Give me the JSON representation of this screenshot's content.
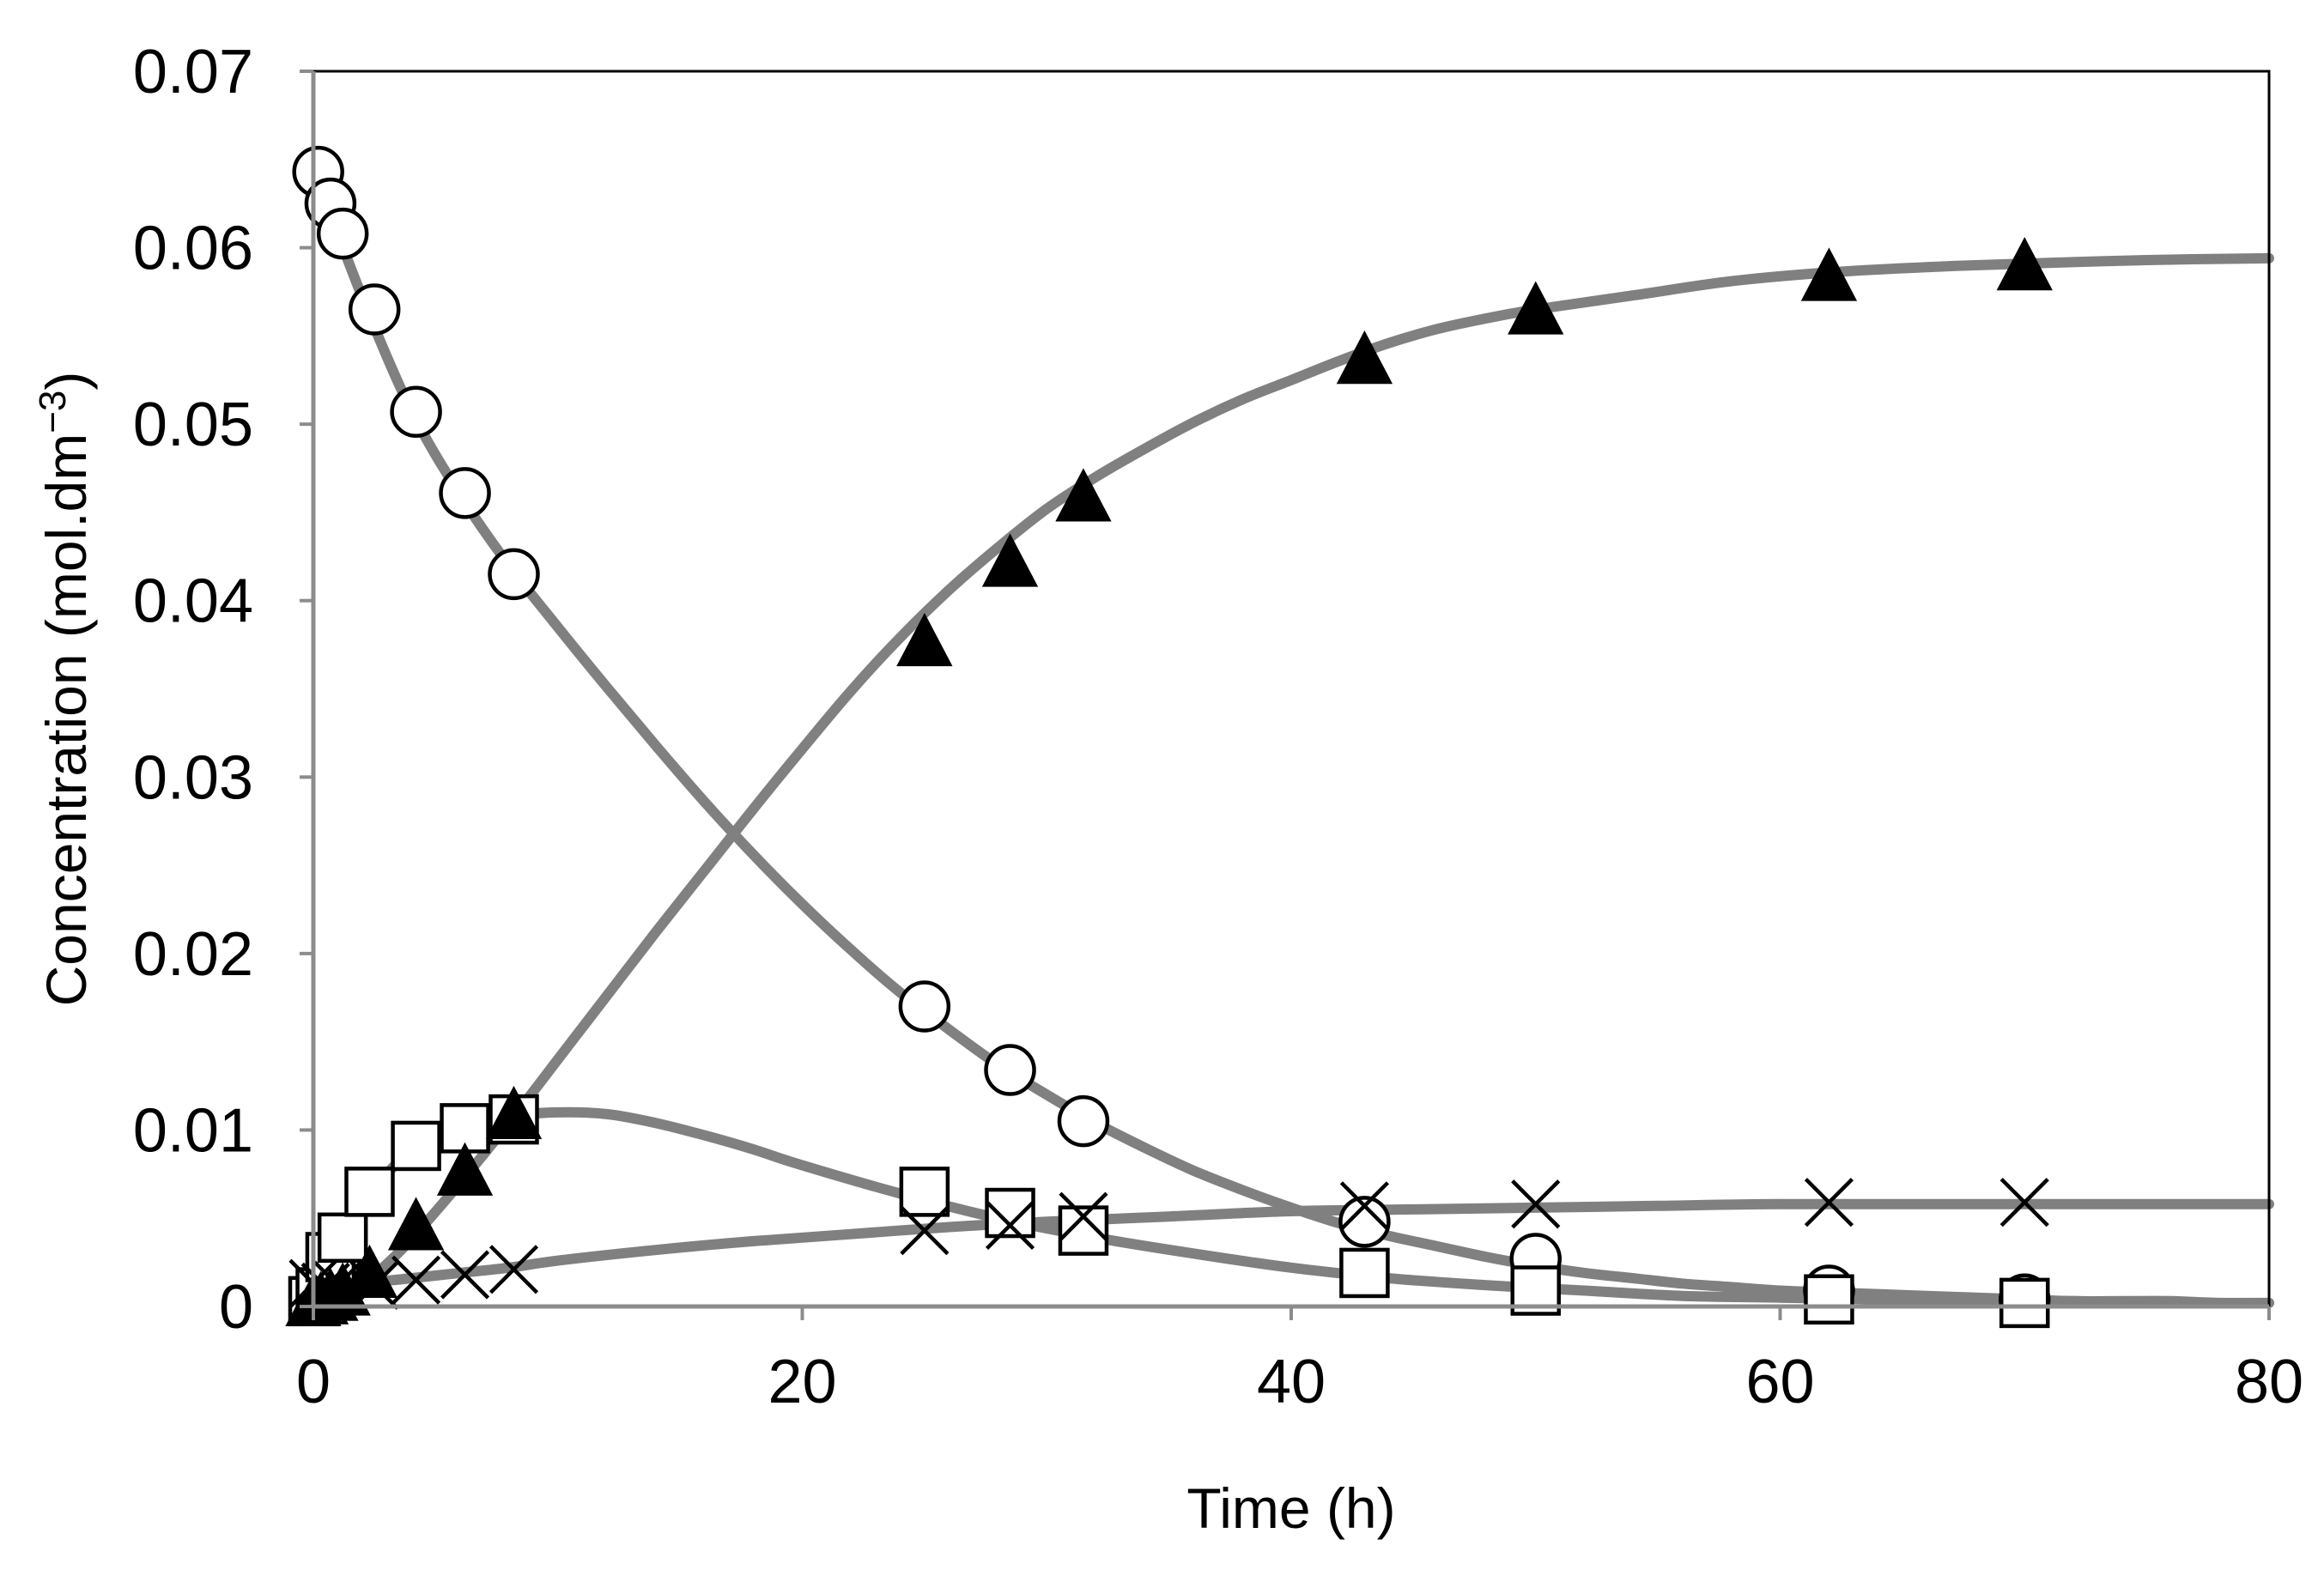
{
  "chart_data": {
    "type": "scatter",
    "title": "",
    "xlabel": "Time (h)",
    "ylabel_main": "Concentration (mol.dm",
    "ylabel_sup": "−3",
    "ylabel_close": ")",
    "xlim": [
      0,
      80
    ],
    "ylim": [
      0,
      0.07
    ],
    "x_ticks": [
      0,
      20,
      40,
      60,
      80
    ],
    "x_tick_labels": [
      "0",
      "20",
      "40",
      "60",
      "80"
    ],
    "y_ticks": [
      0,
      0.01,
      0.02,
      0.03,
      0.04,
      0.05,
      0.06,
      0.07
    ],
    "y_tick_labels": [
      "0",
      "0.01",
      "0.02",
      "0.03",
      "0.04",
      "0.05",
      "0.06",
      "0.07"
    ],
    "grid": false,
    "legend": "none",
    "line_color": "#808080",
    "marker_color": "#000000",
    "series": [
      {
        "name": "circles",
        "marker": "open-circle",
        "x": [
          0.2,
          0.7,
          1.2,
          2.5,
          4.2,
          6.2,
          8.2,
          25,
          28.5,
          31.5,
          43,
          50,
          62,
          70
        ],
        "y": [
          0.0643,
          0.0625,
          0.0608,
          0.0565,
          0.0507,
          0.0461,
          0.0415,
          0.017,
          0.0134,
          0.0105,
          0.0048,
          0.0027,
          0.0009,
          0.0004
        ]
      },
      {
        "name": "squares",
        "marker": "open-square",
        "x": [
          0,
          0.3,
          0.7,
          1.2,
          2.3,
          4.2,
          6.2,
          8.2,
          25,
          28.5,
          31.5,
          43,
          50,
          62,
          70
        ],
        "y": [
          0.0003,
          0.0008,
          0.0028,
          0.0039,
          0.0065,
          0.0091,
          0.0101,
          0.0106,
          0.0065,
          0.0053,
          0.0043,
          0.0019,
          0.0009,
          0.0004,
          0.0002
        ]
      },
      {
        "name": "crosses",
        "marker": "cross",
        "x": [
          0,
          0.5,
          1,
          2.5,
          4.2,
          6.2,
          8.2,
          25,
          28.5,
          31.5,
          43,
          50,
          62,
          70
        ],
        "y": [
          0.0013,
          0.0011,
          0.0012,
          0.0012,
          0.0015,
          0.0018,
          0.0021,
          0.0043,
          0.0046,
          0.0051,
          0.0057,
          0.0058,
          0.0059,
          0.0059
        ]
      },
      {
        "name": "triangles",
        "marker": "filled-triangle",
        "x": [
          0,
          0.3,
          0.7,
          1.2,
          2.3,
          4.2,
          6.2,
          8.2,
          25,
          28.5,
          31.5,
          43,
          50,
          62,
          70
        ],
        "y": [
          0.0001,
          0.0002,
          0.0004,
          0.0007,
          0.0017,
          0.0044,
          0.0075,
          0.0107,
          0.0375,
          0.042,
          0.0457,
          0.0535,
          0.0563,
          0.0582,
          0.0588
        ]
      }
    ],
    "fit_curves": [
      {
        "name": "circles-fit",
        "x": [
          0,
          2,
          4,
          6,
          8,
          10,
          12,
          14,
          16,
          18,
          20,
          22,
          24,
          26,
          28,
          30,
          32,
          34,
          36,
          38,
          40,
          42,
          44,
          46,
          48,
          50,
          52,
          54,
          56,
          58,
          60,
          62,
          64,
          66,
          68,
          70,
          72,
          74,
          76,
          78,
          80
        ],
        "y": [
          0.0645,
          0.0572,
          0.0508,
          0.046,
          0.042,
          0.0385,
          0.0351,
          0.0318,
          0.0286,
          0.0256,
          0.0228,
          0.0202,
          0.0178,
          0.0157,
          0.0137,
          0.012,
          0.0104,
          0.009,
          0.0077,
          0.0066,
          0.0056,
          0.0047,
          0.004,
          0.0034,
          0.0028,
          0.0023,
          0.0019,
          0.0016,
          0.0013,
          0.0011,
          0.0009,
          0.0008,
          0.0007,
          0.0006,
          0.0005,
          0.0004,
          0.0003,
          0.0003,
          0.0003,
          0.0002,
          0.0002
        ]
      },
      {
        "name": "squares-fit",
        "x": [
          0,
          1,
          2,
          3,
          4,
          5,
          6,
          8,
          10,
          12,
          14,
          16,
          18,
          20,
          24,
          28,
          32,
          36,
          40,
          44,
          48,
          52,
          56,
          60,
          64,
          68,
          72,
          76,
          80
        ],
        "y": [
          0,
          0.0028,
          0.0055,
          0.0075,
          0.0088,
          0.0097,
          0.0103,
          0.0108,
          0.011,
          0.0109,
          0.0104,
          0.0097,
          0.0089,
          0.008,
          0.0064,
          0.005,
          0.0039,
          0.003,
          0.0022,
          0.0016,
          0.0012,
          0.0009,
          0.0006,
          0.0005,
          0.0004,
          0.0003,
          0.0003,
          0.0002,
          0.0002
        ]
      },
      {
        "name": "crosses-fit",
        "x": [
          0,
          1,
          2,
          4,
          6,
          8,
          10,
          14,
          18,
          22,
          26,
          30,
          35,
          40,
          45,
          50,
          55,
          60,
          70,
          80
        ],
        "y": [
          0.0006,
          0.001,
          0.0013,
          0.0016,
          0.0019,
          0.0022,
          0.0026,
          0.0032,
          0.0037,
          0.0041,
          0.0045,
          0.0048,
          0.0051,
          0.0054,
          0.0055,
          0.0056,
          0.0057,
          0.0058,
          0.0058,
          0.0058
        ]
      },
      {
        "name": "triangles-fit",
        "x": [
          0,
          1,
          2,
          3,
          4,
          6,
          8,
          10,
          12,
          14,
          16,
          18,
          20,
          22,
          24,
          26,
          28,
          30,
          32,
          34,
          36,
          38,
          40,
          42,
          44,
          46,
          48,
          50,
          54,
          58,
          62,
          66,
          70,
          75,
          80
        ],
        "y": [
          0,
          0.0004,
          0.0012,
          0.0024,
          0.0038,
          0.007,
          0.0104,
          0.014,
          0.0176,
          0.0212,
          0.0247,
          0.0282,
          0.0316,
          0.0349,
          0.0379,
          0.0406,
          0.043,
          0.0452,
          0.047,
          0.0486,
          0.0501,
          0.0514,
          0.0525,
          0.0536,
          0.0546,
          0.0554,
          0.056,
          0.0565,
          0.0573,
          0.0581,
          0.0586,
          0.0589,
          0.0591,
          0.0593,
          0.0594
        ]
      }
    ]
  }
}
